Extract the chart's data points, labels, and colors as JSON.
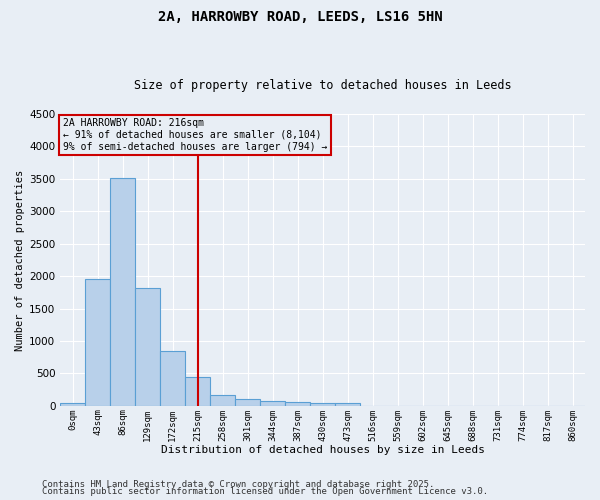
{
  "title1": "2A, HARROWBY ROAD, LEEDS, LS16 5HN",
  "title2": "Size of property relative to detached houses in Leeds",
  "xlabel": "Distribution of detached houses by size in Leeds",
  "ylabel": "Number of detached properties",
  "bar_labels": [
    "0sqm",
    "43sqm",
    "86sqm",
    "129sqm",
    "172sqm",
    "215sqm",
    "258sqm",
    "301sqm",
    "344sqm",
    "387sqm",
    "430sqm",
    "473sqm",
    "516sqm",
    "559sqm",
    "602sqm",
    "645sqm",
    "688sqm",
    "731sqm",
    "774sqm",
    "817sqm",
    "860sqm"
  ],
  "bar_values": [
    50,
    1950,
    3520,
    1820,
    850,
    450,
    160,
    105,
    75,
    55,
    45,
    45,
    0,
    0,
    0,
    0,
    0,
    0,
    0,
    0,
    0
  ],
  "bar_color": "#b8d0ea",
  "bar_edge_color": "#5a9fd4",
  "background_color": "#e8eef5",
  "grid_color": "#ffffff",
  "vline_x": 5,
  "vline_color": "#cc0000",
  "annotation_text": "2A HARROWBY ROAD: 216sqm\n← 91% of detached houses are smaller (8,104)\n9% of semi-detached houses are larger (794) →",
  "annotation_box_color": "#cc0000",
  "ylim": [
    0,
    4500
  ],
  "yticks": [
    0,
    500,
    1000,
    1500,
    2000,
    2500,
    3000,
    3500,
    4000,
    4500
  ],
  "footnote1": "Contains HM Land Registry data © Crown copyright and database right 2025.",
  "footnote2": "Contains public sector information licensed under the Open Government Licence v3.0."
}
